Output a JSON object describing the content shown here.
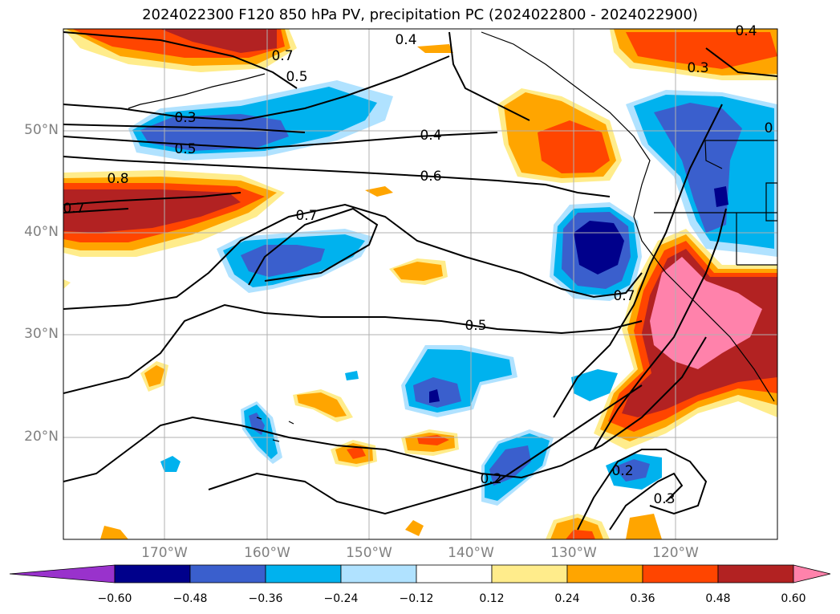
{
  "title": "2024022300 F120 850 hPa PV, precipitation PC (2024022800 - 2024022900)",
  "lat_labels": [
    "50°N",
    "40°N",
    "30°N",
    "20°N"
  ],
  "lon_labels": [
    "170°W",
    "160°W",
    "150°W",
    "140°W",
    "130°W",
    "120°W"
  ],
  "colorbar": {
    "tick_labels": [
      "−0.60",
      "−0.48",
      "−0.36",
      "−0.24",
      "−0.12",
      "0.12",
      "0.24",
      "0.36",
      "0.48",
      "0.60"
    ],
    "colors": [
      "#9932cc",
      "#00008b",
      "#3a5fcd",
      "#00b2ee",
      "#b0e2ff",
      "#ffffff",
      "#ffec8b",
      "#ffa500",
      "#ff4500",
      "#b22222",
      "#ff82ab"
    ],
    "extend": "both"
  },
  "contour_labels": [
    "0.3",
    "0.5",
    "0.4",
    "0.6",
    "0.7",
    "0.8",
    "0.7",
    "0.5",
    "0.7",
    "0.2",
    "0.3",
    "0.2",
    "0.4",
    "0.4",
    "0.5",
    "0.7",
    "0.3",
    "0"
  ],
  "map_extent": {
    "lon": [
      -180,
      -110
    ],
    "lat": [
      10,
      60
    ]
  },
  "gridlines": true
}
